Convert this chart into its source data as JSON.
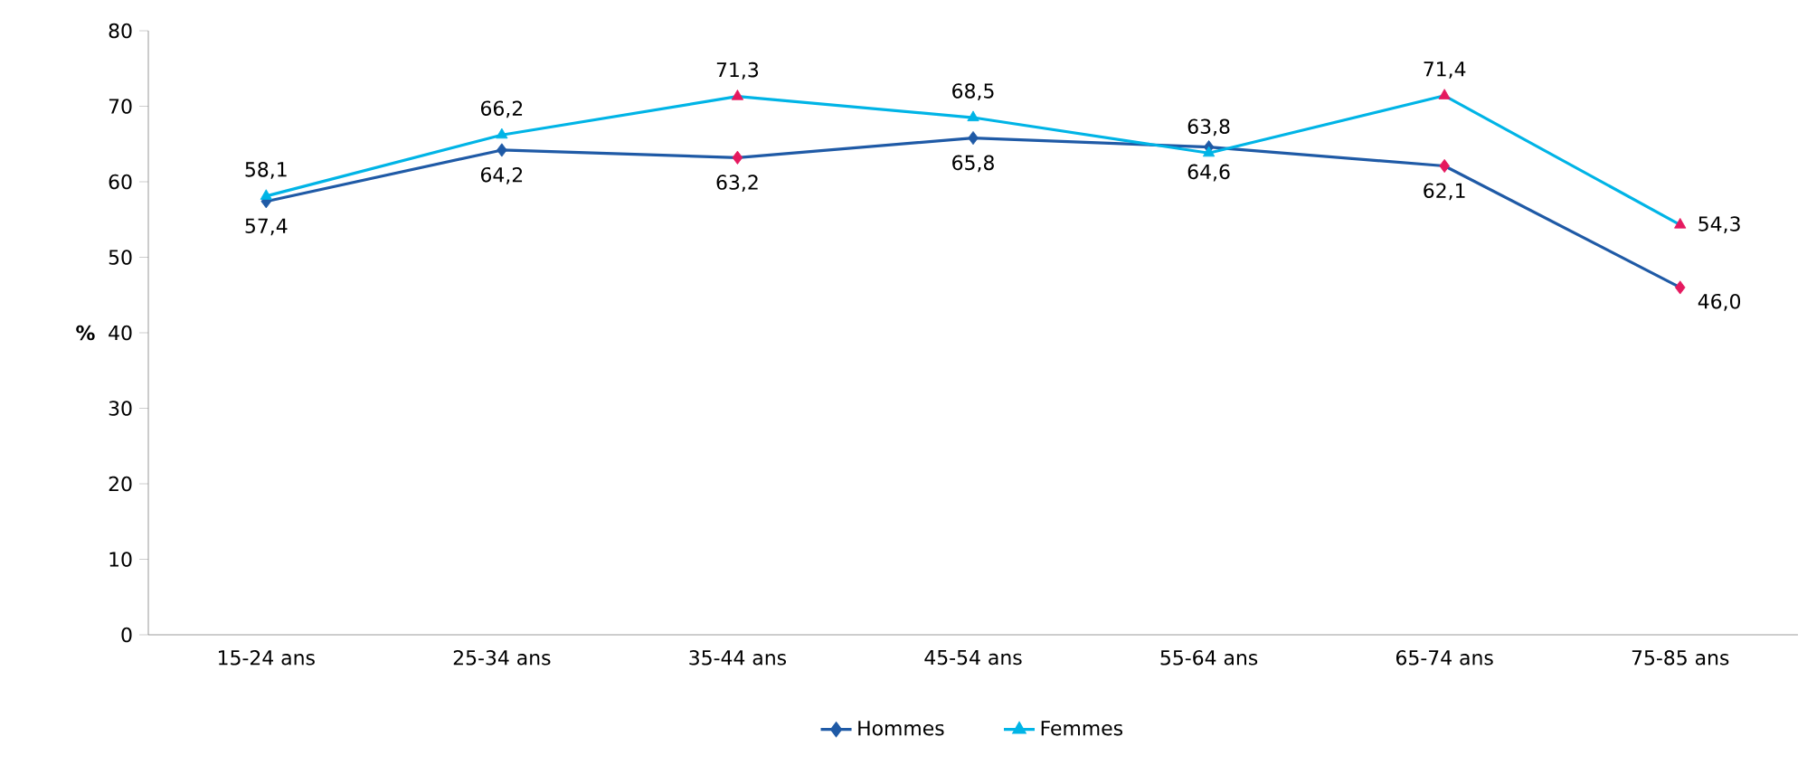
{
  "chart_data": {
    "type": "line",
    "ylabel": "%",
    "categories": [
      "15-24 ans",
      "25-34 ans",
      "35-44 ans",
      "45-54 ans",
      "55-64 ans",
      "65-74 ans",
      "75-85 ans"
    ],
    "series": [
      {
        "name": "Hommes",
        "color": "#1f5aa6",
        "marker": "diamond",
        "values": [
          57.4,
          64.2,
          63.2,
          65.8,
          64.6,
          62.1,
          46.0
        ],
        "colors": [
          "#1f5aa6",
          "#1f5aa6",
          "#e5195f",
          "#1f5aa6",
          "#1f5aa6",
          "#e5195f",
          "#e5195f"
        ],
        "value_labels": [
          "57,4",
          "64,2",
          "63,2",
          "65,8",
          "64,6",
          "62,1",
          "46,0"
        ]
      },
      {
        "name": "Femmes",
        "color": "#00b4e6",
        "marker": "triangle",
        "values": [
          58.1,
          66.2,
          71.3,
          68.5,
          63.8,
          71.4,
          54.3
        ],
        "colors": [
          "#00b4e6",
          "#00b4e6",
          "#e5195f",
          "#00b4e6",
          "#00b4e6",
          "#e5195f",
          "#e5195f"
        ],
        "value_labels": [
          "58,1",
          "66,2",
          "71,3",
          "68,5",
          "63,8",
          "71,4",
          "54,3"
        ]
      }
    ],
    "ylim": [
      0,
      80
    ],
    "yticks": [
      0,
      10,
      20,
      30,
      40,
      50,
      60,
      70,
      80
    ],
    "grid": false,
    "legend": "bottom",
    "line_style": "solid"
  }
}
